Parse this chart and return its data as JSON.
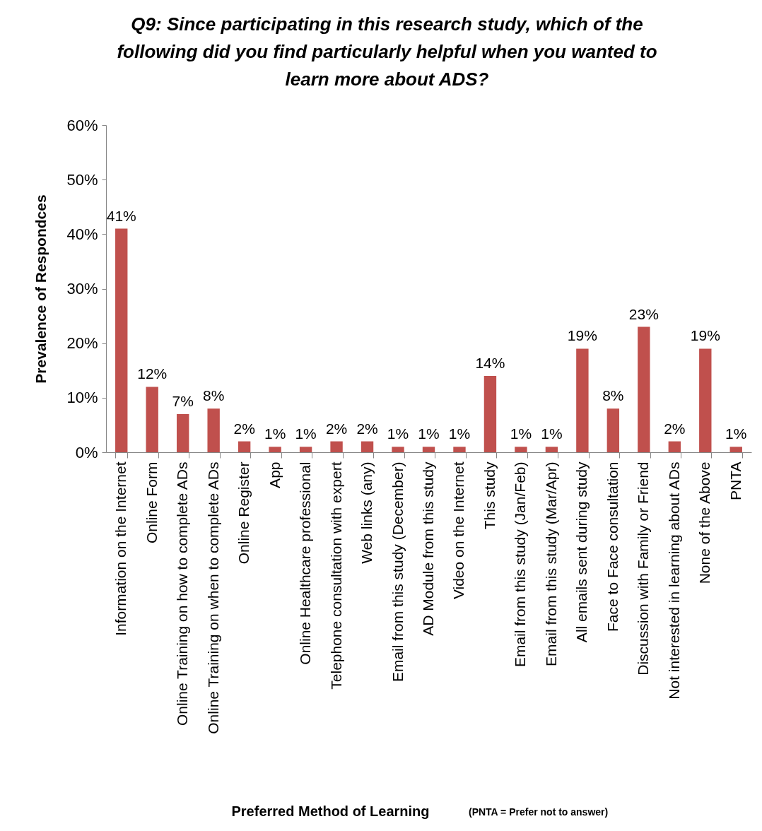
{
  "chart_data": {
    "type": "bar",
    "title": "Q9: Since participating in this research study, which of the following did you find particularly helpful when you wanted to learn more about ADS?",
    "xlabel": "Preferred Method of Learning",
    "ylabel": "Prevalence of Respondces",
    "annotations": [
      "(PNTA = Prefer not to answer)"
    ],
    "categories": [
      "Information on the Internet",
      "Online Form",
      "Online Training on how to complete ADs",
      "Online Training on when to complete ADs",
      "Online Register",
      "App",
      "Online Healthcare professional",
      "Telephone consultation with expert",
      "Web links (any)",
      "Email from this study (December)",
      "AD Module from this study",
      "Video on the Internet",
      "This study",
      "Email from this study (Jan/Feb)",
      "Email from this study (Mar/Apr)",
      "All emails sent during study",
      "Face to Face consultation",
      "Discussion with Family or Friend",
      "Not interested in learning about ADs",
      "None of the Above",
      "PNTA"
    ],
    "values": [
      41,
      12,
      7,
      8,
      2,
      1,
      1,
      2,
      2,
      1,
      1,
      1,
      14,
      1,
      1,
      19,
      8,
      23,
      2,
      19,
      1
    ],
    "value_labels": [
      "41%",
      "12%",
      "7%",
      "8%",
      "2%",
      "1%",
      "1%",
      "2%",
      "2%",
      "1%",
      "1%",
      "1%",
      "14%",
      "1%",
      "1%",
      "19%",
      "8%",
      "23%",
      "2%",
      "19%",
      "1%"
    ],
    "color": "#c0504d",
    "ylim": [
      0,
      60
    ],
    "yticks": [
      {
        "value": 0,
        "label": "0%"
      },
      {
        "value": 10,
        "label": "10%"
      },
      {
        "value": 20,
        "label": "20%"
      },
      {
        "value": 30,
        "label": "30%"
      },
      {
        "value": 40,
        "label": "40%"
      },
      {
        "value": 50,
        "label": "50%"
      },
      {
        "value": 60,
        "label": "60%"
      }
    ],
    "grid": false
  }
}
